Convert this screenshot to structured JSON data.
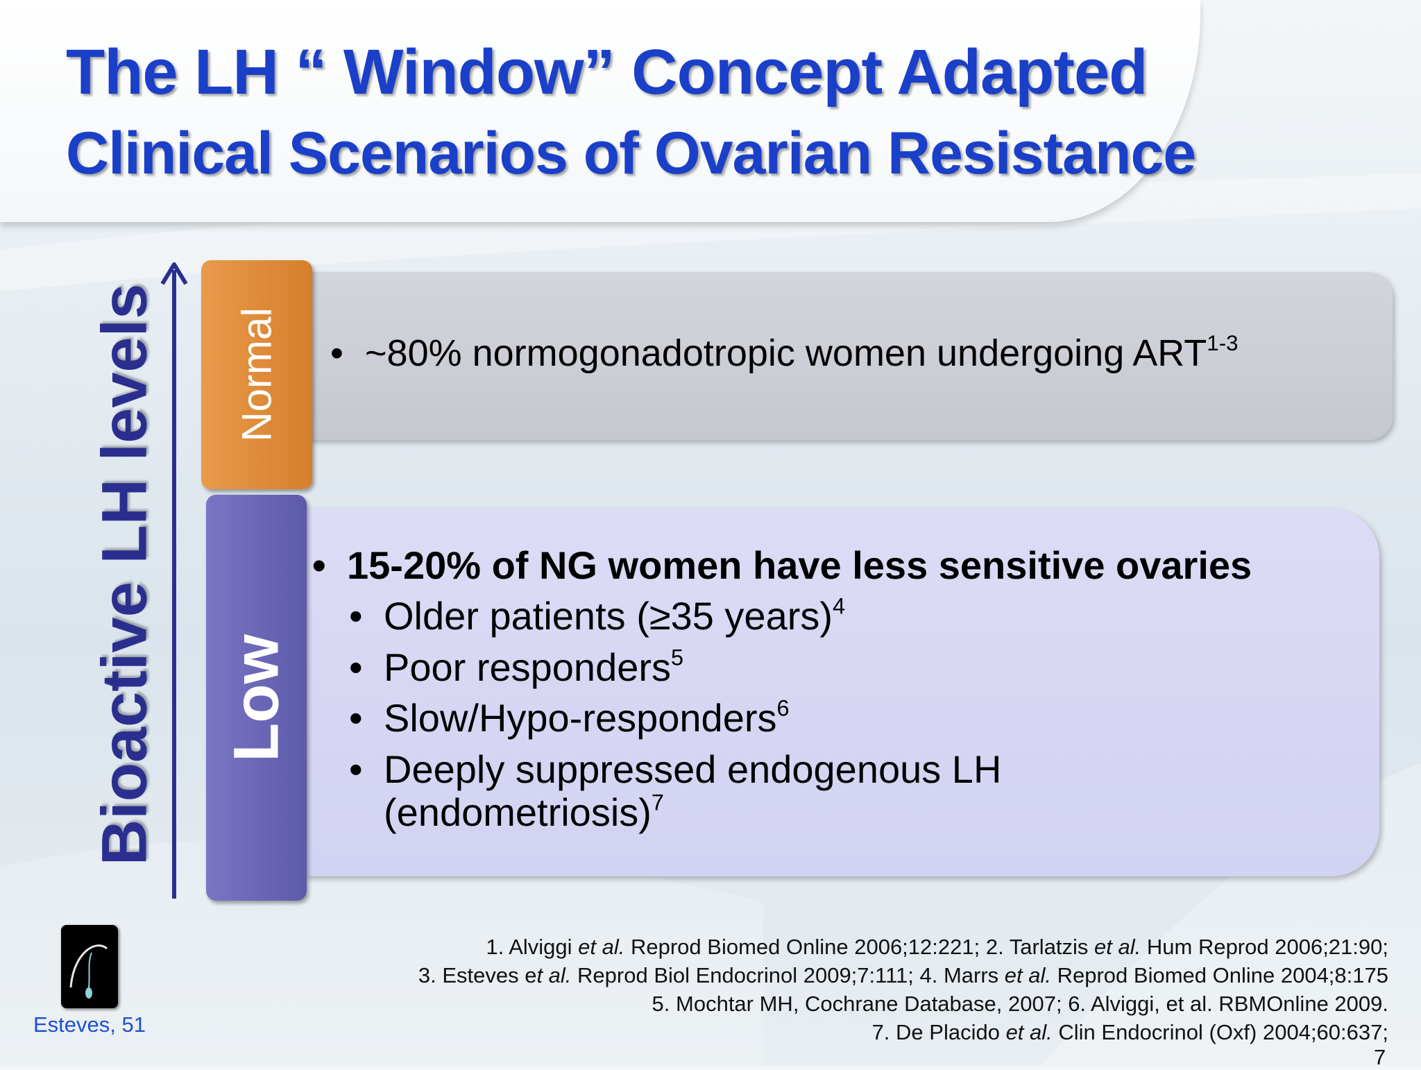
{
  "slide": {
    "title": "The LH “ Window” Concept Adapted",
    "subtitle": "Clinical Scenarios of Ovarian Resistance",
    "axis_label": "Bioactive LH levels",
    "tabs": {
      "normal": "Normal",
      "low": "Low"
    },
    "normal_panel": {
      "bullet": "~80% normogonadotropic women undergoing ART",
      "bullet_sup": "1-3"
    },
    "low_panel": {
      "main_bullet": "15-20% of NG women have less sensitive ovaries",
      "sub_bullets": [
        {
          "text": "Older patients (≥35 years)",
          "sup": "4"
        },
        {
          "text": "Poor responders",
          "sup": "5"
        },
        {
          "text": "Slow/Hypo-responders",
          "sup": "6"
        },
        {
          "text": "Deeply suppressed endogenous LH",
          "sup": ""
        }
      ],
      "sub_bullet_continuation": "(endometriosis)",
      "sub_bullet_continuation_sup": "7"
    },
    "author": "Esteves, 51",
    "references": {
      "line1": {
        "a": "1. Alviggi ",
        "a_it": "et al.",
        "b": " Reprod Biomed Online 2006;12:221; 2. Tarlatzis ",
        "b_it": "et al.",
        "c": " Hum Reprod 2006;21:90;"
      },
      "line2": {
        "a": "3. Esteves e",
        "a_it": "t al.",
        "b": " Reprod Biol Endocrinol 2009;7:111; 4. Marrs ",
        "b_it": "et al.",
        "c": " Reprod Biomed Online 2004;8:175"
      },
      "line3": "5. Mochtar MH, Cochrane Database, 2007; 6. Alviggi, et al. RBMOnline 2009.",
      "line4": {
        "a": "7. De Placido ",
        "a_it": "et al.",
        "b": " Clin Endocrinol (Oxf) 2004;60:637;"
      }
    },
    "page_number": "7",
    "colors": {
      "title": "#1a3fc8",
      "axis": "#2a2f8f",
      "normal_tab": "#d67f2c",
      "low_tab": "#5e5aaa",
      "normal_panel": "#c8c9d1",
      "low_panel": "#d4d4f3"
    }
  }
}
